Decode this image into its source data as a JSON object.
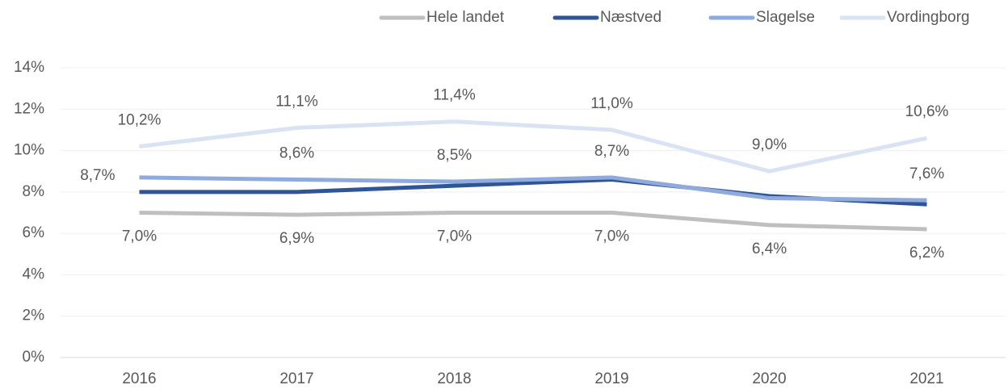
{
  "chart_data": {
    "type": "line",
    "categories": [
      "2016",
      "2017",
      "2018",
      "2019",
      "2020",
      "2021"
    ],
    "series": [
      {
        "name": "Hele landet",
        "color": "#bfbfbf",
        "values": [
          7.0,
          6.9,
          7.0,
          7.0,
          6.4,
          6.2
        ],
        "value_labels": [
          "7,0%",
          "6,9%",
          "7,0%",
          "7,0%",
          "6,4%",
          "6,2%"
        ]
      },
      {
        "name": "Næstved",
        "color": "#2f5597",
        "values": [
          8.0,
          8.0,
          8.3,
          8.6,
          7.8,
          7.4
        ]
      },
      {
        "name": "Slagelse",
        "color": "#8faadc",
        "values": [
          8.7,
          8.6,
          8.5,
          8.7,
          7.7,
          7.6
        ],
        "value_labels": [
          "8,7%",
          "8,6%",
          "8,5%",
          "8,7%",
          null,
          "7,6%"
        ]
      },
      {
        "name": "Vordingborg",
        "color": "#dae3f3",
        "values": [
          10.2,
          11.1,
          11.4,
          11.0,
          9.0,
          10.6
        ],
        "value_labels": [
          "10,2%",
          "11,1%",
          "11,4%",
          "11,0%",
          "9,0%",
          "10,6%"
        ]
      }
    ],
    "ylim": [
      0,
      14
    ],
    "yticks": [
      {
        "value": 0,
        "label": "0%"
      },
      {
        "value": 2,
        "label": "2%"
      },
      {
        "value": 4,
        "label": "4%"
      },
      {
        "value": 6,
        "label": "6%"
      },
      {
        "value": 8,
        "label": "8%"
      },
      {
        "value": 10,
        "label": "10%"
      },
      {
        "value": 12,
        "label": "12%"
      },
      {
        "value": 14,
        "label": "14%"
      }
    ],
    "grid": true,
    "legend": "top-right"
  }
}
